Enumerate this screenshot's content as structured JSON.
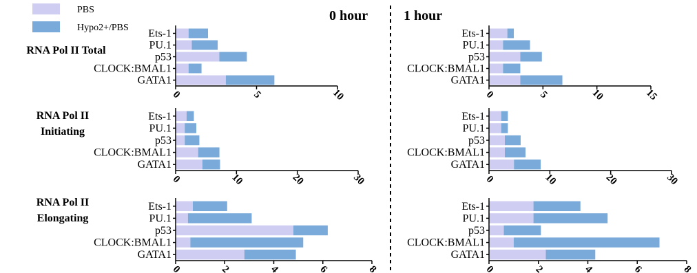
{
  "colors": {
    "pbs": "#cfcdf2",
    "hypo": "#7aaad9"
  },
  "legend": [
    {
      "label": "PBS",
      "color": "#cfcdf2"
    },
    {
      "label": "Hypo2+/PBS",
      "color": "#7aaad9"
    }
  ],
  "columns": [
    "0 hour",
    "1 hour"
  ],
  "row_labels": [
    [
      "RNA Pol II Total"
    ],
    [
      "RNA Pol II",
      "Initiating"
    ],
    [
      "RNA Pol II",
      "Elongating"
    ]
  ],
  "chart_data": [
    {
      "type": "bar",
      "orientation": "horizontal",
      "stacked": true,
      "panel": "RNA Pol II Total - 0 hour",
      "categories": [
        "Ets-1",
        "PU.1",
        "p53",
        "CLOCK:BMAL1",
        "GATA1"
      ],
      "series": [
        {
          "name": "PBS",
          "values": [
            0.8,
            1.0,
            2.7,
            0.8,
            3.1
          ]
        },
        {
          "name": "Hypo2+/PBS",
          "values": [
            1.2,
            1.6,
            1.7,
            0.8,
            3.0
          ]
        }
      ],
      "xlim": [
        0,
        10
      ],
      "xticks": [
        0,
        5,
        10
      ]
    },
    {
      "type": "bar",
      "orientation": "horizontal",
      "stacked": true,
      "panel": "RNA Pol II Total - 1 hour",
      "categories": [
        "Ets-1",
        "PU.1",
        "p53",
        "CLOCK:BMAL1",
        "GATA1"
      ],
      "series": [
        {
          "name": "PBS",
          "values": [
            1.7,
            1.3,
            2.9,
            1.3,
            2.9
          ]
        },
        {
          "name": "Hypo2+/PBS",
          "values": [
            0.6,
            2.5,
            2.0,
            1.6,
            3.9
          ]
        }
      ],
      "xlim": [
        0,
        15
      ],
      "xticks": [
        0,
        5,
        10,
        15
      ]
    },
    {
      "type": "bar",
      "orientation": "horizontal",
      "stacked": true,
      "panel": "RNA Pol II Initiating - 0 hour",
      "categories": [
        "Ets-1",
        "PU.1",
        "p53",
        "CLOCK:BMAL1",
        "GATA1"
      ],
      "series": [
        {
          "name": "PBS",
          "values": [
            1.8,
            1.5,
            1.5,
            3.7,
            4.4
          ]
        },
        {
          "name": "Hypo2+/PBS",
          "values": [
            1.2,
            1.9,
            2.4,
            3.5,
            2.9
          ]
        }
      ],
      "xlim": [
        0,
        30
      ],
      "xticks": [
        0,
        10,
        20,
        30
      ]
    },
    {
      "type": "bar",
      "orientation": "horizontal",
      "stacked": true,
      "panel": "RNA Pol II Initiating - 1 hour",
      "categories": [
        "Ets-1",
        "PU.1",
        "p53",
        "CLOCK:BMAL1",
        "GATA1"
      ],
      "series": [
        {
          "name": "PBS",
          "values": [
            2.0,
            2.0,
            2.6,
            2.6,
            4.1
          ]
        },
        {
          "name": "Hypo2+/PBS",
          "values": [
            1.1,
            1.1,
            2.6,
            3.4,
            4.4
          ]
        }
      ],
      "xlim": [
        0,
        30
      ],
      "xticks": [
        0,
        10,
        20,
        30
      ]
    },
    {
      "type": "bar",
      "orientation": "horizontal",
      "stacked": true,
      "panel": "RNA Pol II Elongating - 0 hour",
      "categories": [
        "Ets-1",
        "PU.1",
        "p53",
        "CLOCK:BMAL1",
        "GATA1"
      ],
      "series": [
        {
          "name": "PBS",
          "values": [
            0.7,
            0.5,
            4.8,
            0.6,
            2.8
          ]
        },
        {
          "name": "Hypo2+/PBS",
          "values": [
            1.4,
            2.6,
            1.4,
            4.6,
            2.1
          ]
        }
      ],
      "xlim": [
        0,
        8
      ],
      "xticks": [
        0,
        2,
        4,
        6,
        8
      ]
    },
    {
      "type": "bar",
      "orientation": "horizontal",
      "stacked": true,
      "panel": "RNA Pol II Elongating - 1 hour",
      "categories": [
        "Ets-1",
        "PU.1",
        "p53",
        "CLOCK:BMAL1",
        "GATA1"
      ],
      "series": [
        {
          "name": "PBS",
          "values": [
            1.8,
            1.8,
            0.6,
            1.0,
            2.3
          ]
        },
        {
          "name": "Hypo2+/PBS",
          "values": [
            1.9,
            3.0,
            1.5,
            5.9,
            2.0
          ]
        }
      ],
      "xlim": [
        0,
        8
      ],
      "xticks": [
        0,
        2,
        4,
        6,
        8
      ]
    }
  ]
}
